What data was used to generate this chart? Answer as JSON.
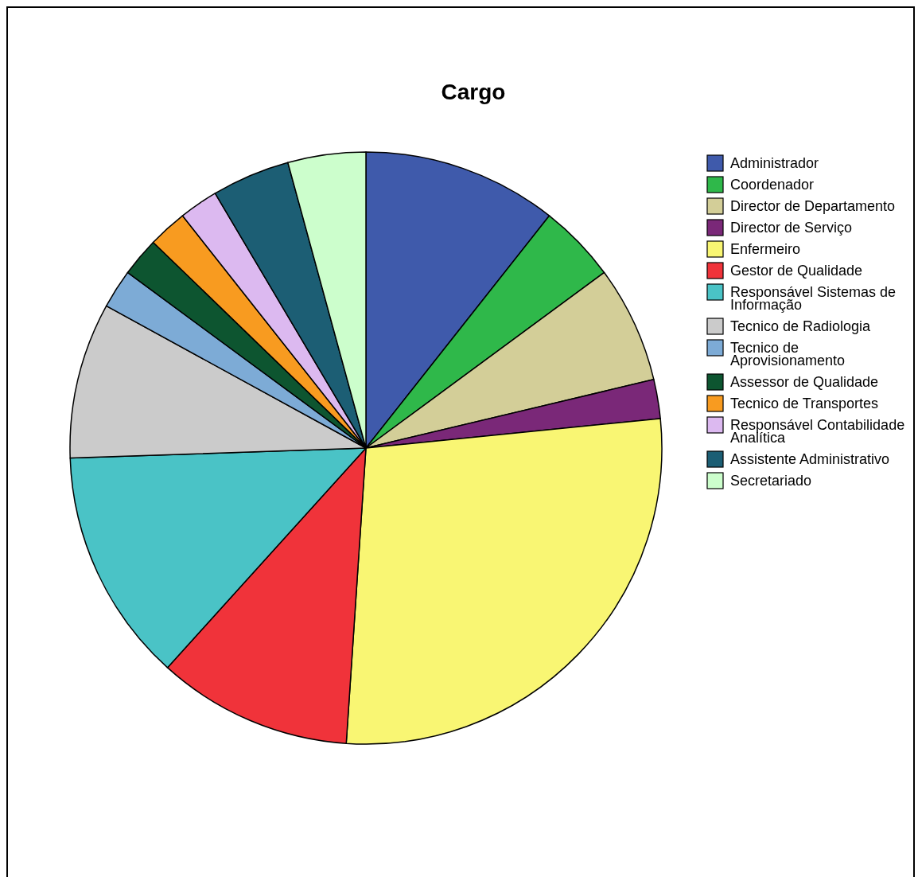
{
  "chart_data": {
    "type": "pie",
    "title": "Cargo",
    "categories": [
      "Administrador",
      "Coordenador",
      "Director de Departamento",
      "Director de Serviço",
      "Enfermeiro",
      "Gestor de Qualidade",
      "Responsável Sistemas de Informação",
      "Tecnico de Radiologia",
      "Tecnico de Aprovisionamento",
      "Assessor de Qualidade",
      "Tecnico de Transportes",
      "Responsável Contabilidade Analítica",
      "Assistente Administrativo",
      "Secretariado"
    ],
    "values": [
      10.64,
      4.26,
      6.38,
      2.13,
      27.65,
      10.64,
      12.76,
      8.51,
      2.13,
      2.13,
      2.13,
      2.13,
      4.26,
      4.25
    ],
    "colors": [
      "#3f5aab",
      "#2fb84a",
      "#d3ce98",
      "#7a2878",
      "#f9f673",
      "#f0333a",
      "#4ac3c6",
      "#cbcbcb",
      "#7dabd6",
      "#0d5530",
      "#f89b20",
      "#dcb9f0",
      "#1c5e74",
      "#ccfecc"
    ],
    "legend": "right"
  }
}
